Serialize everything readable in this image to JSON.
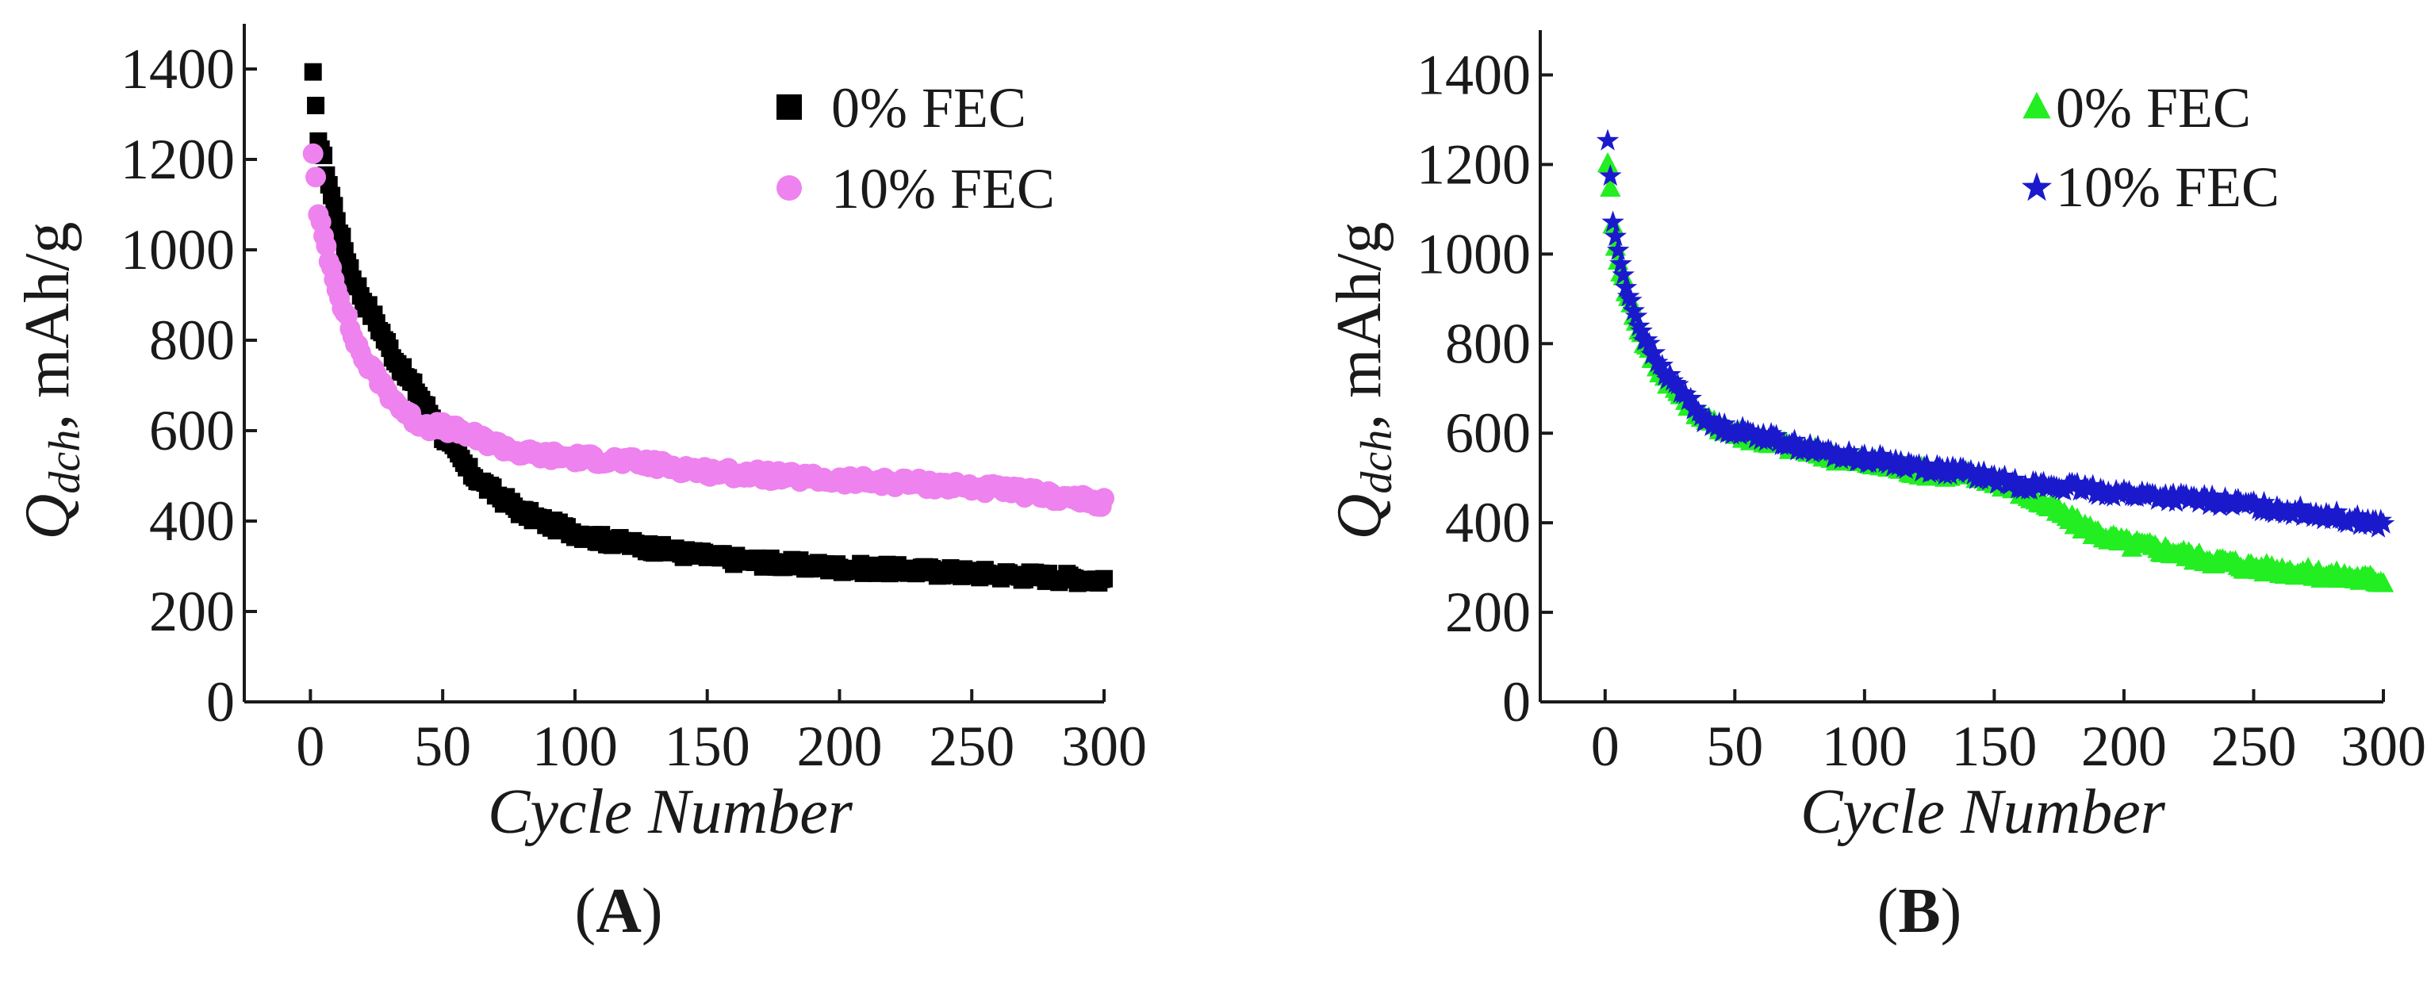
{
  "figure": {
    "panels": [
      {
        "label_open": "(",
        "label": "A",
        "label_close": ")",
        "legend": [
          "0% FEC",
          "10% FEC"
        ],
        "legend_markers": [
          "square",
          "circle"
        ],
        "colors": [
          "#000000",
          "#ee82ee"
        ]
      },
      {
        "label_open": "(",
        "label": "B",
        "label_close": ")",
        "legend": [
          "0% FEC",
          "10% FEC"
        ],
        "legend_markers": [
          "triangle",
          "star"
        ],
        "colors": [
          "#22ee22",
          "#1a1acc"
        ]
      }
    ]
  },
  "chart_data": [
    {
      "type": "scatter",
      "title": "",
      "xlabel": "Cycle Number",
      "ylabel_main": "Q",
      "ylabel_sub": "dch",
      "ylabel_units": ", mAh/g",
      "xlim": [
        -25,
        300
      ],
      "ylim": [
        0,
        1500
      ],
      "xticks": [
        0,
        50,
        100,
        150,
        200,
        250,
        300
      ],
      "yticks": [
        0,
        200,
        400,
        600,
        800,
        1000,
        1200,
        1400
      ],
      "legend_position": "top-right",
      "series": [
        {
          "name": "0% FEC",
          "marker": "square",
          "color": "#000000",
          "anchors": [
            [
              1,
              1385
            ],
            [
              2,
              1310
            ],
            [
              3,
              1250
            ],
            [
              5,
              1200
            ],
            [
              8,
              1120
            ],
            [
              12,
              1020
            ],
            [
              16,
              940
            ],
            [
              20,
              890
            ],
            [
              25,
              840
            ],
            [
              30,
              780
            ],
            [
              35,
              730
            ],
            [
              40,
              690
            ],
            [
              45,
              640
            ],
            [
              50,
              590
            ],
            [
              55,
              550
            ],
            [
              60,
              510
            ],
            [
              70,
              460
            ],
            [
              80,
              420
            ],
            [
              90,
              395
            ],
            [
              100,
              375
            ],
            [
              110,
              360
            ],
            [
              125,
              345
            ],
            [
              140,
              330
            ],
            [
              160,
              315
            ],
            [
              180,
              305
            ],
            [
              200,
              297
            ],
            [
              225,
              292
            ],
            [
              250,
              285
            ],
            [
              275,
              278
            ],
            [
              300,
              270
            ]
          ]
        },
        {
          "name": "10% FEC",
          "marker": "circle",
          "color": "#ee82ee",
          "anchors": [
            [
              1,
              1220
            ],
            [
              2,
              1155
            ],
            [
              3,
              1075
            ],
            [
              5,
              1030
            ],
            [
              8,
              960
            ],
            [
              12,
              880
            ],
            [
              16,
              810
            ],
            [
              20,
              760
            ],
            [
              25,
              720
            ],
            [
              30,
              680
            ],
            [
              35,
              645
            ],
            [
              40,
              620
            ],
            [
              45,
              610
            ],
            [
              50,
              608
            ],
            [
              55,
              600
            ],
            [
              60,
              590
            ],
            [
              70,
              570
            ],
            [
              80,
              550
            ],
            [
              90,
              545
            ],
            [
              100,
              540
            ],
            [
              115,
              535
            ],
            [
              130,
              525
            ],
            [
              150,
              510
            ],
            [
              175,
              500
            ],
            [
              200,
              490
            ],
            [
              225,
              485
            ],
            [
              250,
              475
            ],
            [
              275,
              460
            ],
            [
              300,
              440
            ]
          ]
        }
      ]
    },
    {
      "type": "scatter",
      "title": "",
      "xlabel": "Cycle Number",
      "ylabel_main": "Q",
      "ylabel_sub": "dch",
      "ylabel_units": ", mAh/g",
      "xlim": [
        -25,
        300
      ],
      "ylim": [
        0,
        1500
      ],
      "xticks": [
        0,
        50,
        100,
        150,
        200,
        250,
        300
      ],
      "yticks": [
        0,
        200,
        400,
        600,
        800,
        1000,
        1200,
        1400
      ],
      "legend_position": "top-right",
      "series": [
        {
          "name": "0% FEC",
          "marker": "triangle",
          "color": "#22ee22",
          "anchors": [
            [
              1,
              1210
            ],
            [
              2,
              1140
            ],
            [
              3,
              1060
            ],
            [
              5,
              990
            ],
            [
              8,
              920
            ],
            [
              12,
              850
            ],
            [
              16,
              790
            ],
            [
              20,
              750
            ],
            [
              25,
              710
            ],
            [
              30,
              680
            ],
            [
              35,
              650
            ],
            [
              40,
              625
            ],
            [
              50,
              600
            ],
            [
              60,
              585
            ],
            [
              75,
              565
            ],
            [
              90,
              545
            ],
            [
              105,
              530
            ],
            [
              120,
              515
            ],
            [
              140,
              505
            ],
            [
              150,
              495
            ],
            [
              160,
              470
            ],
            [
              170,
              440
            ],
            [
              180,
              405
            ],
            [
              190,
              375
            ],
            [
              200,
              355
            ],
            [
              215,
              340
            ],
            [
              230,
              320
            ],
            [
              250,
              300
            ],
            [
              275,
              285
            ],
            [
              300,
              270
            ]
          ]
        },
        {
          "name": "10% FEC",
          "marker": "star",
          "color": "#1a1acc",
          "anchors": [
            [
              1,
              1255
            ],
            [
              2,
              1170
            ],
            [
              3,
              1075
            ],
            [
              5,
              1000
            ],
            [
              8,
              930
            ],
            [
              12,
              860
            ],
            [
              16,
              800
            ],
            [
              20,
              760
            ],
            [
              25,
              720
            ],
            [
              30,
              690
            ],
            [
              35,
              655
            ],
            [
              40,
              620
            ],
            [
              50,
              605
            ],
            [
              60,
              595
            ],
            [
              75,
              570
            ],
            [
              90,
              550
            ],
            [
              105,
              540
            ],
            [
              120,
              525
            ],
            [
              140,
              510
            ],
            [
              160,
              485
            ],
            [
              180,
              478
            ],
            [
              200,
              465
            ],
            [
              220,
              455
            ],
            [
              240,
              445
            ],
            [
              260,
              430
            ],
            [
              280,
              415
            ],
            [
              300,
              395
            ]
          ]
        }
      ]
    }
  ]
}
